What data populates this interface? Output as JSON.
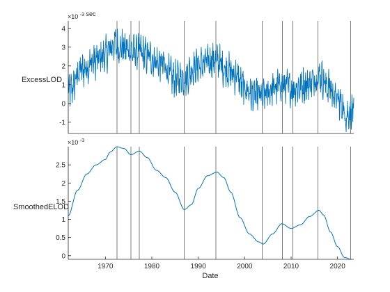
{
  "chart_data": [
    {
      "type": "line",
      "ylabel": "ExcessLOD",
      "yunit": "sec",
      "exponent_label": "×10",
      "exponent_power": "-3",
      "xlim": [
        1962,
        2023.5
      ],
      "ylim": [
        -1.6,
        4.4
      ],
      "yticks": [
        -1,
        0,
        1,
        2,
        3,
        4
      ],
      "series_color": "#0072BD",
      "noise_amplitude": 0.75,
      "trend_series": {
        "x": [
          1962,
          1965,
          1968,
          1970,
          1972,
          1973,
          1975,
          1976,
          1977,
          1979,
          1982,
          1985,
          1987,
          1989,
          1991,
          1993,
          1994,
          1996,
          1998,
          2000,
          2002,
          2004,
          2006,
          2008,
          2010,
          2012,
          2014,
          2016,
          2018,
          2020,
          2022,
          2023.5
        ],
        "y": [
          0.6,
          1.8,
          2.3,
          2.6,
          3.2,
          3.0,
          2.9,
          2.7,
          2.8,
          2.5,
          2.1,
          1.3,
          1.3,
          1.9,
          2.1,
          2.3,
          2.3,
          1.8,
          1.5,
          0.8,
          0.4,
          0.4,
          0.8,
          1.0,
          0.8,
          0.9,
          1.1,
          1.5,
          0.9,
          0.2,
          -0.6,
          -0.4
        ]
      }
    },
    {
      "type": "line",
      "ylabel": "SmoothedELOD",
      "xlabel": "Date",
      "exponent_label": "×10",
      "exponent_power": "-3",
      "xlim": [
        1962,
        2023.5
      ],
      "ylim": [
        -0.1,
        3.0
      ],
      "yticks": [
        0,
        0.5,
        1,
        1.5,
        2,
        2.5
      ],
      "ytick_labels": [
        "0",
        "0.5",
        "1",
        "1.5",
        "2",
        "2.5"
      ],
      "xticks": [
        1970,
        1980,
        1990,
        2000,
        2010,
        2020
      ],
      "series_color": "#0072BD",
      "series": {
        "x": [
          1962,
          1964,
          1966,
          1968,
          1970,
          1971,
          1972.5,
          1974,
          1975.5,
          1977.3,
          1979,
          1981,
          1983,
          1985,
          1987,
          1988.5,
          1990,
          1992,
          1994,
          1995.5,
          1997,
          1999,
          2001,
          2003,
          2004,
          2006,
          2008,
          2010,
          2012,
          2014,
          2016,
          2017,
          2018.5,
          2020,
          2021.5,
          2023
        ],
        "y": [
          1.1,
          1.8,
          2.25,
          2.5,
          2.65,
          2.85,
          3.0,
          2.95,
          2.78,
          2.88,
          2.7,
          2.35,
          2.15,
          1.75,
          1.27,
          1.4,
          1.85,
          2.2,
          2.3,
          2.15,
          1.75,
          1.05,
          0.6,
          0.38,
          0.32,
          0.6,
          0.88,
          0.75,
          0.85,
          1.08,
          1.25,
          1.12,
          0.65,
          0.25,
          -0.05,
          -0.1
        ]
      }
    }
  ],
  "event_years": [
    1972.5,
    1975.5,
    1977.3,
    1987,
    1993.8,
    2003.8,
    2008.1,
    2010.4,
    2015.8,
    2022.8
  ],
  "event_line_color": "#262626"
}
